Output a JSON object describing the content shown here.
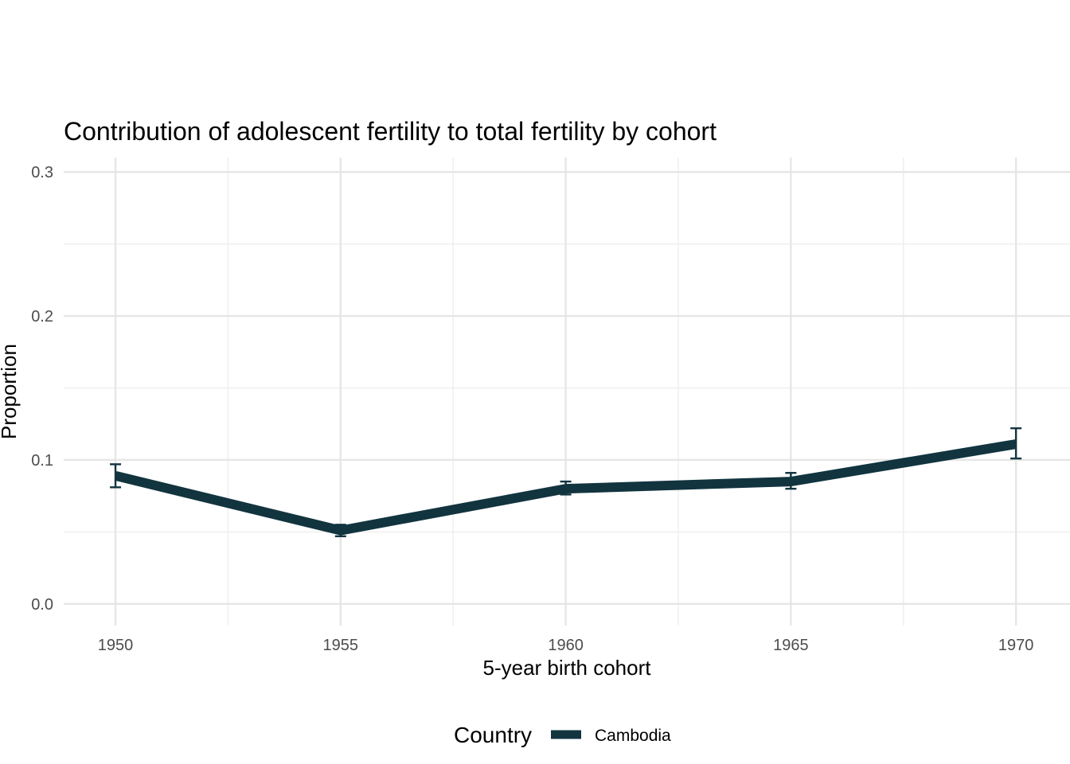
{
  "chart_data": {
    "type": "line",
    "title": "Contribution of adolescent fertility to total fertility by cohort",
    "xlabel": "5-year birth cohort",
    "ylabel": "Proportion",
    "x": [
      1950,
      1955,
      1960,
      1965,
      1970
    ],
    "x_ticks": [
      "1950",
      "1955",
      "1960",
      "1965",
      "1970"
    ],
    "y_ticks": [
      "0.0",
      "0.1",
      "0.2",
      "0.3"
    ],
    "xlim": [
      1948.85,
      1971.2
    ],
    "ylim": [
      -0.015,
      0.31
    ],
    "grid": true,
    "legend": {
      "title": "Country",
      "position": "bottom"
    },
    "series": [
      {
        "name": "Cambodia",
        "color": "#12343f",
        "values": [
          0.089,
          0.051,
          0.08,
          0.085,
          0.111
        ],
        "error_low": [
          0.081,
          0.047,
          0.076,
          0.08,
          0.101
        ],
        "error_high": [
          0.097,
          0.055,
          0.085,
          0.091,
          0.122
        ]
      }
    ]
  }
}
